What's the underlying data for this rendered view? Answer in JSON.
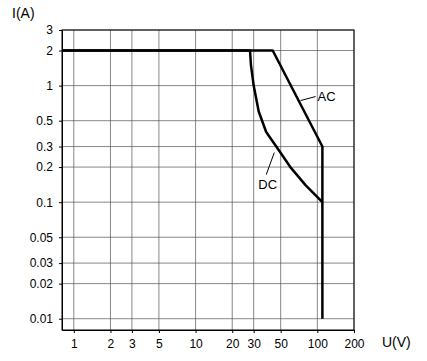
{
  "chart_data": {
    "type": "line",
    "x_label": "U(V)",
    "y_label": "I(A)",
    "log": true,
    "grid": true,
    "xlim": [
      0.8,
      200
    ],
    "ylim": [
      0.008,
      3
    ],
    "xticks": [
      1,
      2,
      3,
      5,
      10,
      20,
      30,
      50,
      100,
      200
    ],
    "yticks": [
      0.01,
      0.02,
      0.03,
      0.05,
      0.1,
      0.2,
      0.3,
      0.5,
      1,
      2,
      3
    ],
    "series": [
      {
        "name": "AC",
        "color": "#000000",
        "x": [
          0.8,
          43,
          110,
          110
        ],
        "values": [
          2,
          2,
          0.3,
          0.01
        ]
      },
      {
        "name": "DC",
        "color": "#000000",
        "x": [
          0.8,
          28,
          28.5,
          30,
          33,
          38,
          46,
          60,
          80,
          110
        ],
        "values": [
          2,
          2,
          1.5,
          1,
          0.6,
          0.4,
          0.3,
          0.2,
          0.14,
          0.1
        ]
      }
    ]
  }
}
